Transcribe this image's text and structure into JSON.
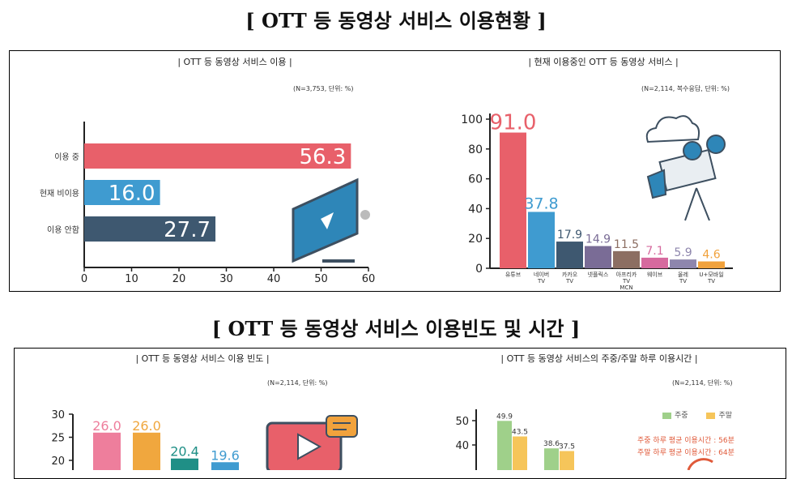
{
  "titles": {
    "section1": "[ OTT 등 동영상 서비스 이용현황 ]",
    "section2": "[ OTT 등 동영상 서비스 이용빈도 및 시간 ]"
  },
  "panels": {
    "p1": {
      "title": "|  OTT 등 동영상 서비스 이용  |",
      "note": "(N=3,753, 단위: %)"
    },
    "p2": {
      "title": "|  현재 이용중인 OTT 등 동영상 서비스  |",
      "note": "(N=2,114, 복수응답, 단위: %)"
    },
    "p3": {
      "title": "|  OTT 등 동영상 서비스 이용 빈도  |",
      "note": "(N=2,114, 단위: %)"
    },
    "p4": {
      "title": "|  OTT 등 동영상 서비스의 주중/주말 하루 이용시간  |",
      "note": "(N=2,114, 단위: %)",
      "avg_weekday": "주중 하루 평균 이용시간 : 56분",
      "avg_weekend": "주말 하루 평균 이용시간 : 64분"
    }
  },
  "colors": {
    "red": "#e8606a",
    "blue": "#3f9bd0",
    "slate": "#3e5870",
    "purple": "#7a6c96",
    "brown": "#8c6e62",
    "pink": "#d66a9e",
    "lavender": "#8e86ad",
    "orange": "#f1a23c",
    "teal": "#1f8f86",
    "green": "#9fd08a",
    "yellow": "#f6c55a"
  },
  "chart_data": [
    {
      "type": "bar",
      "orientation": "horizontal",
      "categories": [
        "이용 중",
        "현재 비이용",
        "이용 안함"
      ],
      "values": [
        56.3,
        16.0,
        27.7
      ],
      "value_labels": [
        "56.3",
        "16.0",
        "27.7"
      ],
      "xlim": [
        0,
        60
      ],
      "xticks": [
        "0",
        "10",
        "20",
        "30",
        "40",
        "50",
        "60"
      ],
      "colors": [
        "#e8606a",
        "#3f9bd0",
        "#3e5870"
      ]
    },
    {
      "type": "bar",
      "categories": [
        "유튜브",
        "네이버 TV",
        "카카오 TV",
        "넷플릭스",
        "아프리카 TV MCN",
        "웨이브",
        "올레 TV",
        "U+모바일 TV"
      ],
      "values": [
        91.0,
        37.8,
        17.9,
        14.9,
        11.5,
        7.1,
        5.9,
        4.6
      ],
      "value_labels": [
        "91.0",
        "37.8",
        "17.9",
        "14.9",
        "11.5",
        "7.1",
        "5.9",
        "4.6"
      ],
      "ylim": [
        0,
        100
      ],
      "yticks": [
        "0",
        "20",
        "40",
        "60",
        "80",
        "100"
      ],
      "colors": [
        "#e8606a",
        "#3f9bd0",
        "#3e5870",
        "#7a6c96",
        "#8c6e62",
        "#d66a9e",
        "#8e86ad",
        "#f1a23c"
      ]
    },
    {
      "type": "bar",
      "values": [
        26.0,
        26.0,
        20.4,
        19.6
      ],
      "value_labels": [
        "26.0",
        "26.0",
        "20.4",
        "19.6"
      ],
      "ylim": [
        15,
        30
      ],
      "yticks": [
        "20",
        "25",
        "30"
      ],
      "colors": [
        "#ee7e9c",
        "#f0a73e",
        "#1f8f86",
        "#3f9bd0"
      ]
    },
    {
      "type": "bar",
      "series": [
        {
          "name": "주중",
          "values": [
            49.9,
            38.6
          ]
        },
        {
          "name": "주말",
          "values": [
            43.5,
            37.5
          ]
        }
      ],
      "value_labels": [
        [
          "49.9",
          "38.6"
        ],
        [
          "43.5",
          "37.5"
        ]
      ],
      "ylim": [
        30,
        55
      ],
      "yticks": [
        "40",
        "50"
      ],
      "colors": [
        "#9fd08a",
        "#f6c55a"
      ]
    }
  ]
}
